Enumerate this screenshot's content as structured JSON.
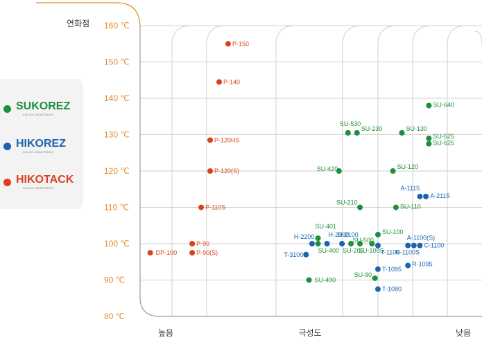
{
  "legend": [
    {
      "name": "SUKOREZ",
      "sub": "KOLON INDUSTRIES",
      "color": "#1e8f3b"
    },
    {
      "name": "HIKOREZ",
      "sub": "KOLON INDUSTRIES",
      "color": "#1a64b0"
    },
    {
      "name": "HIKOTACK",
      "sub": "KOLON INDUSTRIES",
      "color": "#d9421e"
    }
  ],
  "colors": {
    "axis_label": "#e8862a",
    "grid": "#cfcfcf",
    "frame": "#999999"
  },
  "chart_data": {
    "type": "scatter",
    "ylabel": "연화점",
    "xlabel": "극성도",
    "x_tick_labels": [
      "높음",
      "극성도",
      "낮음"
    ],
    "ylim": [
      80,
      160
    ],
    "y_ticks": [
      160,
      150,
      140,
      130,
      120,
      110,
      100,
      90,
      80
    ],
    "y_tick_labels": [
      "160 ℃",
      "150 ℃",
      "140 ℃",
      "130 ℃",
      "120 ℃",
      "110 ℃",
      "100 ℃",
      "90 ℃",
      "80 ℃"
    ],
    "xlim": [
      0,
      100
    ],
    "series": [
      {
        "name": "SUKOREZ",
        "color": "#1e8f3b",
        "points": [
          {
            "label": "SU-640",
            "x": 95,
            "y": 138
          },
          {
            "label": "SU-530",
            "x": 68,
            "y": 130.5
          },
          {
            "label": "SU-230",
            "x": 71,
            "y": 130.5
          },
          {
            "label": "SU-130",
            "x": 86,
            "y": 130.5
          },
          {
            "label": "SU-525",
            "x": 95,
            "y": 129
          },
          {
            "label": "SU-625",
            "x": 95,
            "y": 127.5
          },
          {
            "label": "SU-420",
            "x": 65,
            "y": 120
          },
          {
            "label": "SU-120",
            "x": 83,
            "y": 120
          },
          {
            "label": "SU-210",
            "x": 72,
            "y": 110
          },
          {
            "label": "SU-110",
            "x": 84,
            "y": 110
          },
          {
            "label": "SU-401",
            "x": 58,
            "y": 101.5
          },
          {
            "label": "SU-400",
            "x": 58,
            "y": 100
          },
          {
            "label": "SU-100",
            "x": 78,
            "y": 102.5
          },
          {
            "label": "SU-500",
            "x": 76,
            "y": 100
          },
          {
            "label": "SU-200",
            "x": 69,
            "y": 100
          },
          {
            "label": "SU-100S",
            "x": 72,
            "y": 100
          },
          {
            "label": "SU-490",
            "x": 55,
            "y": 90
          },
          {
            "label": "SU-90",
            "x": 77,
            "y": 90.5
          }
        ]
      },
      {
        "name": "HIKOREZ",
        "color": "#1a64b0",
        "points": [
          {
            "label": "A-1115",
            "x": 92,
            "y": 113
          },
          {
            "label": "A-2115",
            "x": 94,
            "y": 113
          },
          {
            "label": "H-2200",
            "x": 56,
            "y": 100
          },
          {
            "label": "H-2300",
            "x": 61,
            "y": 100
          },
          {
            "label": "H-2100",
            "x": 66,
            "y": 100
          },
          {
            "label": "T-3100",
            "x": 54,
            "y": 97
          },
          {
            "label": "T-1100",
            "x": 78,
            "y": 99.5
          },
          {
            "label": "A-1100(S)",
            "x": 90,
            "y": 99.5
          },
          {
            "label": "C-1100",
            "x": 92,
            "y": 99.5
          },
          {
            "label": "R-1100S",
            "x": 88,
            "y": 99.5
          },
          {
            "label": "T-1095",
            "x": 78,
            "y": 93
          },
          {
            "label": "R-1095",
            "x": 88,
            "y": 94
          },
          {
            "label": "T-1080",
            "x": 78,
            "y": 87.5
          }
        ]
      },
      {
        "name": "HIKOTACK",
        "color": "#d9421e",
        "points": [
          {
            "label": "P-150",
            "x": 28,
            "y": 155
          },
          {
            "label": "P-140",
            "x": 25,
            "y": 144.5
          },
          {
            "label": "P-120HS",
            "x": 22,
            "y": 128.5
          },
          {
            "label": "P-120(S)",
            "x": 22,
            "y": 120
          },
          {
            "label": "P-110S",
            "x": 19,
            "y": 110
          },
          {
            "label": "P-90",
            "x": 16,
            "y": 100
          },
          {
            "label": "P-90(S)",
            "x": 16,
            "y": 97.5
          },
          {
            "label": "DP-100",
            "x": 2,
            "y": 97.5
          }
        ]
      }
    ]
  }
}
